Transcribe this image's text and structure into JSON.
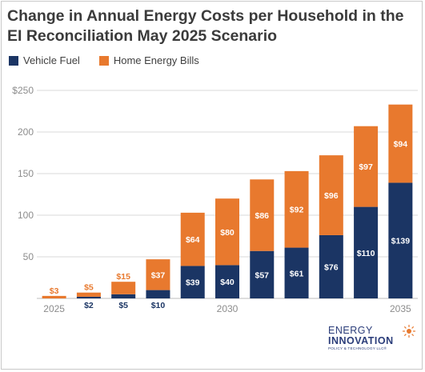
{
  "chart_data": {
    "type": "bar",
    "stacked": true,
    "title": "Change in Annual Energy Costs per Household in the EI Reconciliation May 2025 Scenario",
    "categories": [
      "2025",
      "2026",
      "2027",
      "2028",
      "2029",
      "2030",
      "2031",
      "2032",
      "2033",
      "2034",
      "2035"
    ],
    "x_tick_labels": [
      "2025",
      "",
      "",
      "",
      "",
      "2030",
      "",
      "",
      "",
      "",
      "2035"
    ],
    "series": [
      {
        "name": "Vehicle Fuel",
        "color": "#1b3564",
        "values": [
          0,
          2,
          5,
          10,
          39,
          40,
          57,
          61,
          76,
          110,
          139
        ],
        "labels": [
          "",
          "$2",
          "$5",
          "$10",
          "$39",
          "$40",
          "$57",
          "$61",
          "$76",
          "$110",
          "$139"
        ]
      },
      {
        "name": "Home Energy Bills",
        "color": "#e8792e",
        "values": [
          3,
          5,
          15,
          37,
          64,
          80,
          86,
          92,
          96,
          97,
          94
        ],
        "labels": [
          "$3",
          "$5",
          "$15",
          "$37",
          "$64",
          "$80",
          "$86",
          "$92",
          "$96",
          "$97",
          "$94"
        ]
      }
    ],
    "ylim": [
      0,
      250
    ],
    "y_ticks": [
      0,
      50,
      100,
      150,
      200,
      250
    ],
    "y_tick_labels": [
      "",
      "50",
      "100",
      "150",
      "200",
      "$250"
    ],
    "grid": true,
    "legend_position": "top-left",
    "xlabel": "",
    "ylabel": ""
  },
  "logo": {
    "line1": "ENERGY",
    "line2": "INNOVATION",
    "line3": "POLICY & TECHNOLOGY LLC®"
  }
}
